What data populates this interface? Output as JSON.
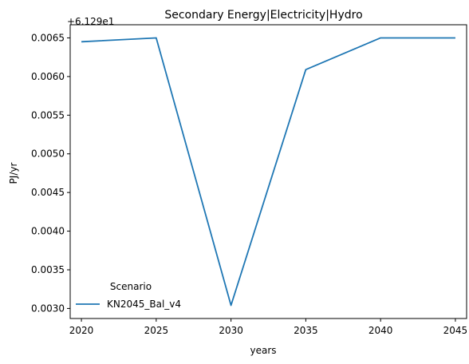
{
  "chart_data": {
    "type": "line",
    "title": "Secondary Energy|Electricity|Hydro",
    "xlabel": "years",
    "ylabel": "PJ/yr",
    "offset_label": "+6.129e1",
    "x": [
      2020,
      2025,
      2030,
      2035,
      2040,
      2045
    ],
    "x_ticks": [
      "2020",
      "2025",
      "2030",
      "2035",
      "2040",
      "2045"
    ],
    "xlim": [
      2019.25,
      2045.75
    ],
    "y_ticks": [
      "0.0030",
      "0.0035",
      "0.0040",
      "0.0045",
      "0.0050",
      "0.0055",
      "0.0060",
      "0.0065"
    ],
    "ylim": [
      0.00287,
      0.00667
    ],
    "series": [
      {
        "name": "KN2045_Bal_v4",
        "color": "#1f77b4",
        "values": [
          0.00645,
          0.0065,
          0.00304,
          0.00609,
          0.0065,
          0.0065
        ]
      }
    ],
    "legend": {
      "title": "Scenario",
      "position": "lower-left"
    },
    "grid": false
  }
}
